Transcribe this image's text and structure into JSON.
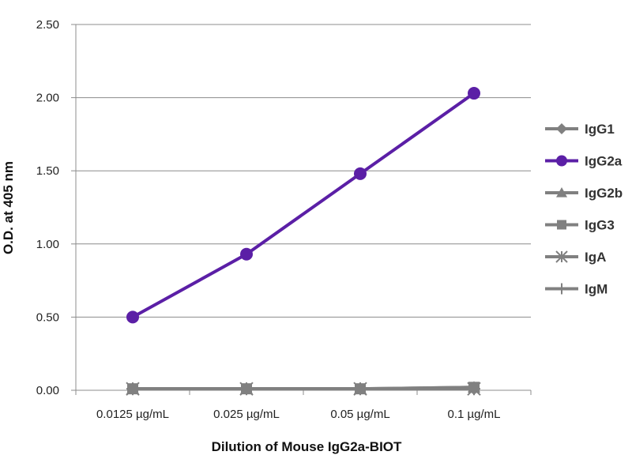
{
  "chart_data": {
    "type": "line",
    "title": "",
    "xlabel": "Dilution of Mouse IgG2a-BIOT",
    "ylabel": "O.D. at 405 nm",
    "categories": [
      "0.0125 µg/mL",
      "0.025 µg/mL",
      "0.05 µg/mL",
      "0.1 µg/mL"
    ],
    "ylim": [
      0,
      2.5
    ],
    "yticks": [
      "0.00",
      "0.50",
      "1.00",
      "1.50",
      "2.00",
      "2.50"
    ],
    "grid": true,
    "legend_position": "right",
    "series": [
      {
        "name": "IgG1",
        "values": [
          0.01,
          0.01,
          0.01,
          0.01
        ],
        "color": "#808080",
        "marker": "diamond"
      },
      {
        "name": "IgG2a",
        "values": [
          0.5,
          0.93,
          1.48,
          2.03
        ],
        "color": "#5b1fa6",
        "marker": "circle"
      },
      {
        "name": "IgG2b",
        "values": [
          0.01,
          0.01,
          0.01,
          0.02
        ],
        "color": "#808080",
        "marker": "triangle"
      },
      {
        "name": "IgG3",
        "values": [
          0.01,
          0.01,
          0.01,
          0.02
        ],
        "color": "#808080",
        "marker": "square"
      },
      {
        "name": "IgA",
        "values": [
          0.01,
          0.01,
          0.01,
          0.01
        ],
        "color": "#808080",
        "marker": "asterisk"
      },
      {
        "name": "IgM",
        "values": [
          0.01,
          0.01,
          0.01,
          0.01
        ],
        "color": "#808080",
        "marker": "plus"
      }
    ]
  }
}
